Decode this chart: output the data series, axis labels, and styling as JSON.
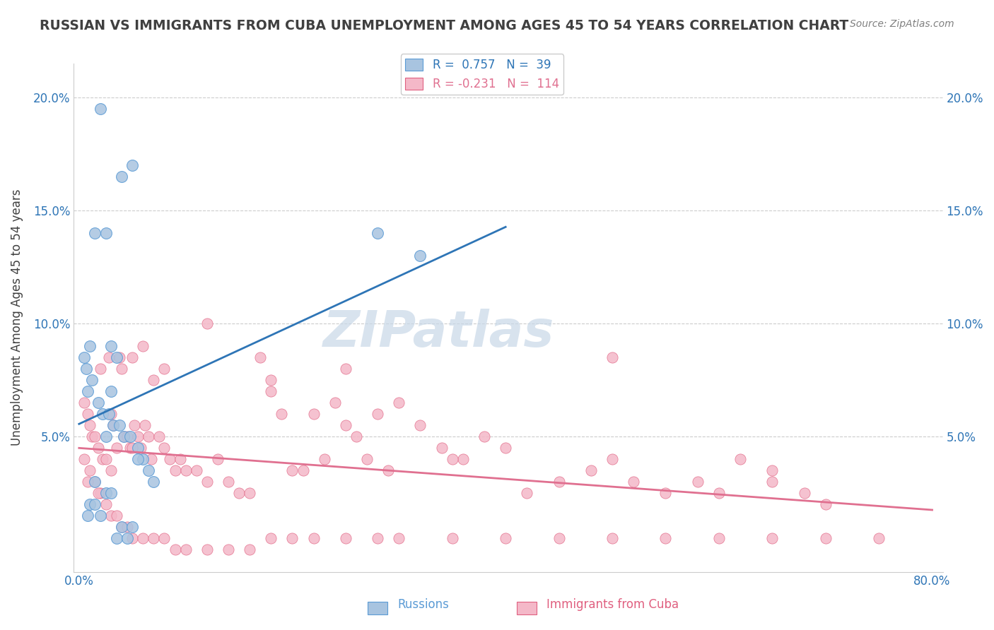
{
  "title": "RUSSIAN VS IMMIGRANTS FROM CUBA UNEMPLOYMENT AMONG AGES 45 TO 54 YEARS CORRELATION CHART",
  "source": "Source: ZipAtlas.com",
  "ylabel": "Unemployment Among Ages 45 to 54 years",
  "xlabel": "",
  "xlim": [
    0.0,
    0.8
  ],
  "ylim": [
    -0.01,
    0.215
  ],
  "xticks": [
    0.0,
    0.1,
    0.2,
    0.3,
    0.4,
    0.5,
    0.6,
    0.7,
    0.8
  ],
  "xticklabels": [
    "0.0%",
    "",
    "",
    "",
    "",
    "",
    "",
    "",
    "80.0%"
  ],
  "yticks": [
    0.0,
    0.05,
    0.1,
    0.15,
    0.2
  ],
  "yticklabels": [
    "",
    "5.0%",
    "10.0%",
    "15.0%",
    "20.0%"
  ],
  "grid_color": "#cccccc",
  "background_color": "#ffffff",
  "russian_color": "#a8c4e0",
  "russian_edge": "#5b9bd5",
  "russian_R": 0.757,
  "russian_N": 39,
  "russian_line_color": "#2e75b6",
  "cuba_color": "#f4b8c8",
  "cuba_edge": "#e06080",
  "cuba_R": -0.231,
  "cuba_N": 114,
  "cuba_line_color": "#e07090",
  "watermark": "ZIPatlas",
  "watermark_color": "#c8d8e8",
  "title_color": "#404040",
  "axis_label_color": "#404040",
  "tick_color": "#2e75b6",
  "legend_R_color": "#2e75b6",
  "legend_N_color": "#2e75b6",
  "russians_x": [
    0.02,
    0.04,
    0.025,
    0.015,
    0.03,
    0.035,
    0.01,
    0.005,
    0.007,
    0.012,
    0.008,
    0.018,
    0.022,
    0.028,
    0.032,
    0.038,
    0.042,
    0.048,
    0.055,
    0.06,
    0.065,
    0.07,
    0.025,
    0.03,
    0.01,
    0.015,
    0.02,
    0.008,
    0.04,
    0.05,
    0.035,
    0.045,
    0.055,
    0.015,
    0.025,
    0.03,
    0.05,
    0.28,
    0.32
  ],
  "russians_y": [
    0.195,
    0.165,
    0.14,
    0.14,
    0.09,
    0.085,
    0.09,
    0.085,
    0.08,
    0.075,
    0.07,
    0.065,
    0.06,
    0.06,
    0.055,
    0.055,
    0.05,
    0.05,
    0.045,
    0.04,
    0.035,
    0.03,
    0.025,
    0.025,
    0.02,
    0.02,
    0.015,
    0.015,
    0.01,
    0.01,
    0.005,
    0.005,
    0.04,
    0.03,
    0.05,
    0.07,
    0.17,
    0.14,
    0.13
  ],
  "cuba_x": [
    0.005,
    0.008,
    0.01,
    0.012,
    0.015,
    0.018,
    0.02,
    0.022,
    0.025,
    0.028,
    0.03,
    0.032,
    0.035,
    0.038,
    0.04,
    0.042,
    0.045,
    0.048,
    0.05,
    0.052,
    0.055,
    0.058,
    0.06,
    0.062,
    0.065,
    0.068,
    0.07,
    0.075,
    0.08,
    0.085,
    0.09,
    0.095,
    0.1,
    0.11,
    0.12,
    0.13,
    0.14,
    0.15,
    0.16,
    0.17,
    0.18,
    0.19,
    0.2,
    0.21,
    0.22,
    0.23,
    0.24,
    0.25,
    0.26,
    0.27,
    0.28,
    0.29,
    0.3,
    0.32,
    0.34,
    0.36,
    0.38,
    0.4,
    0.42,
    0.45,
    0.48,
    0.5,
    0.52,
    0.55,
    0.58,
    0.6,
    0.62,
    0.65,
    0.68,
    0.7,
    0.005,
    0.01,
    0.015,
    0.02,
    0.025,
    0.03,
    0.035,
    0.04,
    0.045,
    0.05,
    0.06,
    0.07,
    0.08,
    0.09,
    0.1,
    0.12,
    0.14,
    0.16,
    0.18,
    0.2,
    0.22,
    0.25,
    0.28,
    0.3,
    0.35,
    0.4,
    0.45,
    0.5,
    0.55,
    0.6,
    0.65,
    0.7,
    0.75,
    0.008,
    0.018,
    0.03,
    0.05,
    0.08,
    0.12,
    0.18,
    0.25,
    0.35,
    0.5,
    0.65
  ],
  "cuba_y": [
    0.065,
    0.06,
    0.055,
    0.05,
    0.05,
    0.045,
    0.08,
    0.04,
    0.04,
    0.085,
    0.06,
    0.055,
    0.045,
    0.085,
    0.08,
    0.05,
    0.05,
    0.045,
    0.085,
    0.055,
    0.05,
    0.045,
    0.09,
    0.055,
    0.05,
    0.04,
    0.075,
    0.05,
    0.045,
    0.04,
    0.035,
    0.04,
    0.035,
    0.035,
    0.03,
    0.04,
    0.03,
    0.025,
    0.025,
    0.085,
    0.07,
    0.06,
    0.035,
    0.035,
    0.06,
    0.04,
    0.065,
    0.055,
    0.05,
    0.04,
    0.06,
    0.035,
    0.065,
    0.055,
    0.045,
    0.04,
    0.05,
    0.045,
    0.025,
    0.03,
    0.035,
    0.04,
    0.03,
    0.025,
    0.03,
    0.025,
    0.04,
    0.035,
    0.025,
    0.02,
    0.04,
    0.035,
    0.03,
    0.025,
    0.02,
    0.015,
    0.015,
    0.01,
    0.01,
    0.005,
    0.005,
    0.005,
    0.005,
    0.0,
    0.0,
    0.0,
    0.0,
    0.0,
    0.005,
    0.005,
    0.005,
    0.005,
    0.005,
    0.005,
    0.005,
    0.005,
    0.005,
    0.005,
    0.005,
    0.005,
    0.005,
    0.005,
    0.005,
    0.03,
    0.025,
    0.035,
    0.045,
    0.08,
    0.1,
    0.075,
    0.08,
    0.04,
    0.085,
    0.03
  ]
}
